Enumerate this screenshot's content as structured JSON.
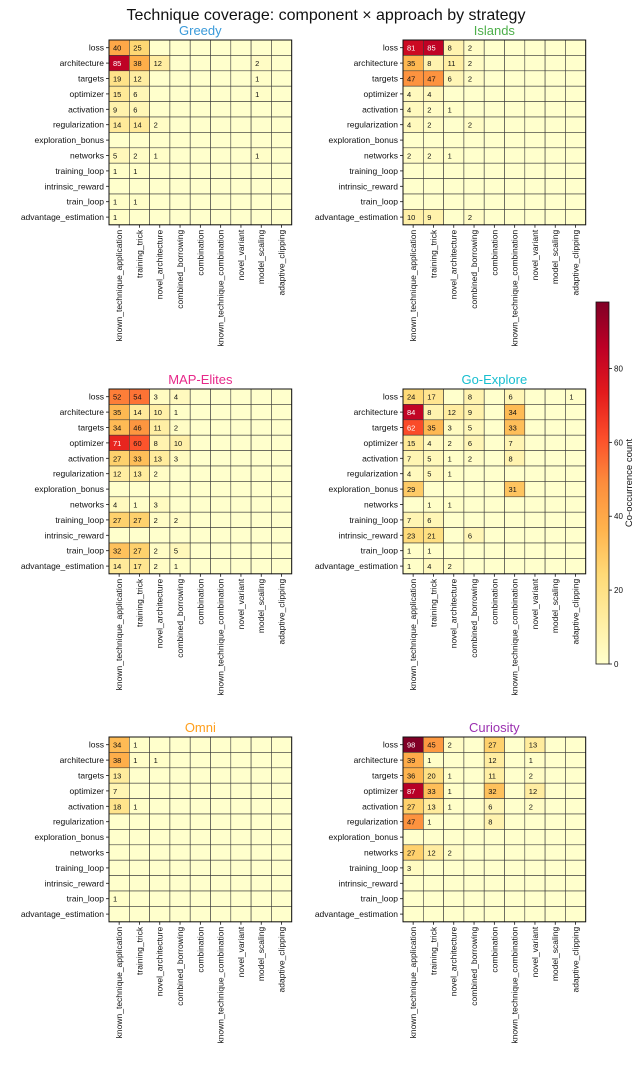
{
  "title": "Technique coverage: component × approach by strategy",
  "colorbar": {
    "label": "Co-occurrence count",
    "ticks": [
      0,
      20,
      40,
      60,
      80
    ],
    "max": 98
  },
  "chart_data": {
    "type": "heatmap",
    "rows": [
      "loss",
      "architecture",
      "targets",
      "optimizer",
      "activation",
      "regularization",
      "exploration_bonus",
      "networks",
      "training_loop",
      "intrinsic_reward",
      "train_loop",
      "advantage_estimation"
    ],
    "columns": [
      "known_technique_application",
      "training_trick",
      "novel_architecture",
      "combined_borrowing",
      "combination",
      "known_technique_combination",
      "novel_variant",
      "model_scaling",
      "adaptive_clipping"
    ],
    "value_range": [
      0,
      98
    ],
    "panels": [
      {
        "name": "Greedy",
        "color": "#3a9ad9",
        "values": [
          [
            40,
            25,
            0,
            0,
            0,
            0,
            0,
            0,
            0
          ],
          [
            85,
            38,
            12,
            0,
            0,
            0,
            0,
            2,
            0
          ],
          [
            19,
            12,
            0,
            0,
            0,
            0,
            0,
            1,
            0
          ],
          [
            15,
            6,
            0,
            0,
            0,
            0,
            0,
            1,
            0
          ],
          [
            9,
            6,
            0,
            0,
            0,
            0,
            0,
            0,
            0
          ],
          [
            14,
            14,
            2,
            0,
            0,
            0,
            0,
            0,
            0
          ],
          [
            0,
            0,
            0,
            0,
            0,
            0,
            0,
            0,
            0
          ],
          [
            5,
            2,
            1,
            0,
            0,
            0,
            0,
            1,
            0
          ],
          [
            1,
            1,
            0,
            0,
            0,
            0,
            0,
            0,
            0
          ],
          [
            0,
            0,
            0,
            0,
            0,
            0,
            0,
            0,
            0
          ],
          [
            1,
            1,
            0,
            0,
            0,
            0,
            0,
            0,
            0
          ],
          [
            1,
            0,
            0,
            0,
            0,
            0,
            0,
            0,
            0
          ]
        ]
      },
      {
        "name": "Islands",
        "color": "#4daf4a",
        "values": [
          [
            81,
            85,
            8,
            2,
            0,
            0,
            0,
            0,
            0
          ],
          [
            35,
            8,
            11,
            2,
            0,
            0,
            0,
            0,
            0
          ],
          [
            47,
            47,
            6,
            2,
            0,
            0,
            0,
            0,
            0
          ],
          [
            4,
            4,
            0,
            0,
            0,
            0,
            0,
            0,
            0
          ],
          [
            4,
            2,
            1,
            0,
            0,
            0,
            0,
            0,
            0
          ],
          [
            4,
            2,
            0,
            2,
            0,
            0,
            0,
            0,
            0
          ],
          [
            0,
            0,
            0,
            0,
            0,
            0,
            0,
            0,
            0
          ],
          [
            2,
            2,
            1,
            0,
            0,
            0,
            0,
            0,
            0
          ],
          [
            0,
            0,
            0,
            0,
            0,
            0,
            0,
            0,
            0
          ],
          [
            0,
            0,
            0,
            0,
            0,
            0,
            0,
            0,
            0
          ],
          [
            0,
            0,
            0,
            0,
            0,
            0,
            0,
            0,
            0
          ],
          [
            10,
            9,
            0,
            2,
            0,
            0,
            0,
            0,
            0
          ]
        ]
      },
      {
        "name": "MAP-Elites",
        "color": "#e7298a",
        "values": [
          [
            52,
            54,
            3,
            4,
            0,
            0,
            0,
            0,
            0
          ],
          [
            35,
            14,
            10,
            1,
            0,
            0,
            0,
            0,
            0
          ],
          [
            34,
            46,
            11,
            2,
            0,
            0,
            0,
            0,
            0
          ],
          [
            71,
            60,
            8,
            10,
            0,
            0,
            0,
            0,
            0
          ],
          [
            27,
            33,
            13,
            3,
            0,
            0,
            0,
            0,
            0
          ],
          [
            12,
            13,
            2,
            0,
            0,
            0,
            0,
            0,
            0
          ],
          [
            0,
            0,
            0,
            0,
            0,
            0,
            0,
            0,
            0
          ],
          [
            4,
            1,
            3,
            0,
            0,
            0,
            0,
            0,
            0
          ],
          [
            27,
            27,
            2,
            2,
            0,
            0,
            0,
            0,
            0
          ],
          [
            0,
            0,
            0,
            0,
            0,
            0,
            0,
            0,
            0
          ],
          [
            32,
            27,
            2,
            5,
            0,
            0,
            0,
            0,
            0
          ],
          [
            14,
            17,
            2,
            1,
            0,
            0,
            0,
            0,
            0
          ]
        ]
      },
      {
        "name": "Go-Explore",
        "color": "#17becf",
        "values": [
          [
            24,
            17,
            0,
            8,
            0,
            6,
            0,
            0,
            1
          ],
          [
            84,
            8,
            12,
            9,
            0,
            34,
            0,
            0,
            0
          ],
          [
            62,
            35,
            3,
            5,
            0,
            33,
            0,
            0,
            0
          ],
          [
            15,
            4,
            2,
            6,
            0,
            7,
            0,
            0,
            0
          ],
          [
            7,
            5,
            1,
            2,
            0,
            8,
            0,
            0,
            0
          ],
          [
            4,
            5,
            1,
            0,
            0,
            0,
            0,
            0,
            0
          ],
          [
            29,
            0,
            0,
            0,
            0,
            31,
            0,
            0,
            0
          ],
          [
            0,
            1,
            1,
            0,
            0,
            0,
            0,
            0,
            0
          ],
          [
            7,
            6,
            0,
            0,
            0,
            0,
            0,
            0,
            0
          ],
          [
            23,
            21,
            0,
            6,
            0,
            0,
            0,
            0,
            0
          ],
          [
            1,
            1,
            0,
            0,
            0,
            0,
            0,
            0,
            0
          ],
          [
            1,
            4,
            2,
            0,
            0,
            0,
            0,
            0,
            0
          ]
        ]
      },
      {
        "name": "Omni",
        "color": "#ff9f1c",
        "values": [
          [
            34,
            1,
            0,
            0,
            0,
            0,
            0,
            0,
            0
          ],
          [
            38,
            1,
            1,
            0,
            0,
            0,
            0,
            0,
            0
          ],
          [
            13,
            0,
            0,
            0,
            0,
            0,
            0,
            0,
            0
          ],
          [
            7,
            0,
            0,
            0,
            0,
            0,
            0,
            0,
            0
          ],
          [
            18,
            1,
            0,
            0,
            0,
            0,
            0,
            0,
            0
          ],
          [
            0,
            0,
            0,
            0,
            0,
            0,
            0,
            0,
            0
          ],
          [
            0,
            0,
            0,
            0,
            0,
            0,
            0,
            0,
            0
          ],
          [
            0,
            0,
            0,
            0,
            0,
            0,
            0,
            0,
            0
          ],
          [
            0,
            0,
            0,
            0,
            0,
            0,
            0,
            0,
            0
          ],
          [
            0,
            0,
            0,
            0,
            0,
            0,
            0,
            0,
            0
          ],
          [
            1,
            0,
            0,
            0,
            0,
            0,
            0,
            0,
            0
          ],
          [
            0,
            0,
            0,
            0,
            0,
            0,
            0,
            0,
            0
          ]
        ]
      },
      {
        "name": "Curiosity",
        "color": "#9b30b0",
        "values": [
          [
            98,
            45,
            2,
            0,
            27,
            0,
            13,
            0,
            0
          ],
          [
            39,
            1,
            0,
            0,
            12,
            0,
            1,
            0,
            0
          ],
          [
            36,
            20,
            1,
            0,
            11,
            0,
            2,
            0,
            0
          ],
          [
            87,
            33,
            1,
            0,
            32,
            0,
            12,
            0,
            0
          ],
          [
            27,
            13,
            1,
            0,
            6,
            0,
            2,
            0,
            0
          ],
          [
            47,
            1,
            0,
            0,
            8,
            0,
            0,
            0,
            0
          ],
          [
            0,
            0,
            0,
            0,
            0,
            0,
            0,
            0,
            0
          ],
          [
            27,
            12,
            2,
            0,
            0,
            0,
            0,
            0,
            0
          ],
          [
            3,
            0,
            0,
            0,
            0,
            0,
            0,
            0,
            0
          ],
          [
            0,
            0,
            0,
            0,
            0,
            0,
            0,
            0,
            0
          ],
          [
            0,
            0,
            0,
            0,
            0,
            0,
            0,
            0,
            0
          ],
          [
            0,
            0,
            0,
            0,
            0,
            0,
            0,
            0,
            0
          ]
        ]
      }
    ]
  }
}
